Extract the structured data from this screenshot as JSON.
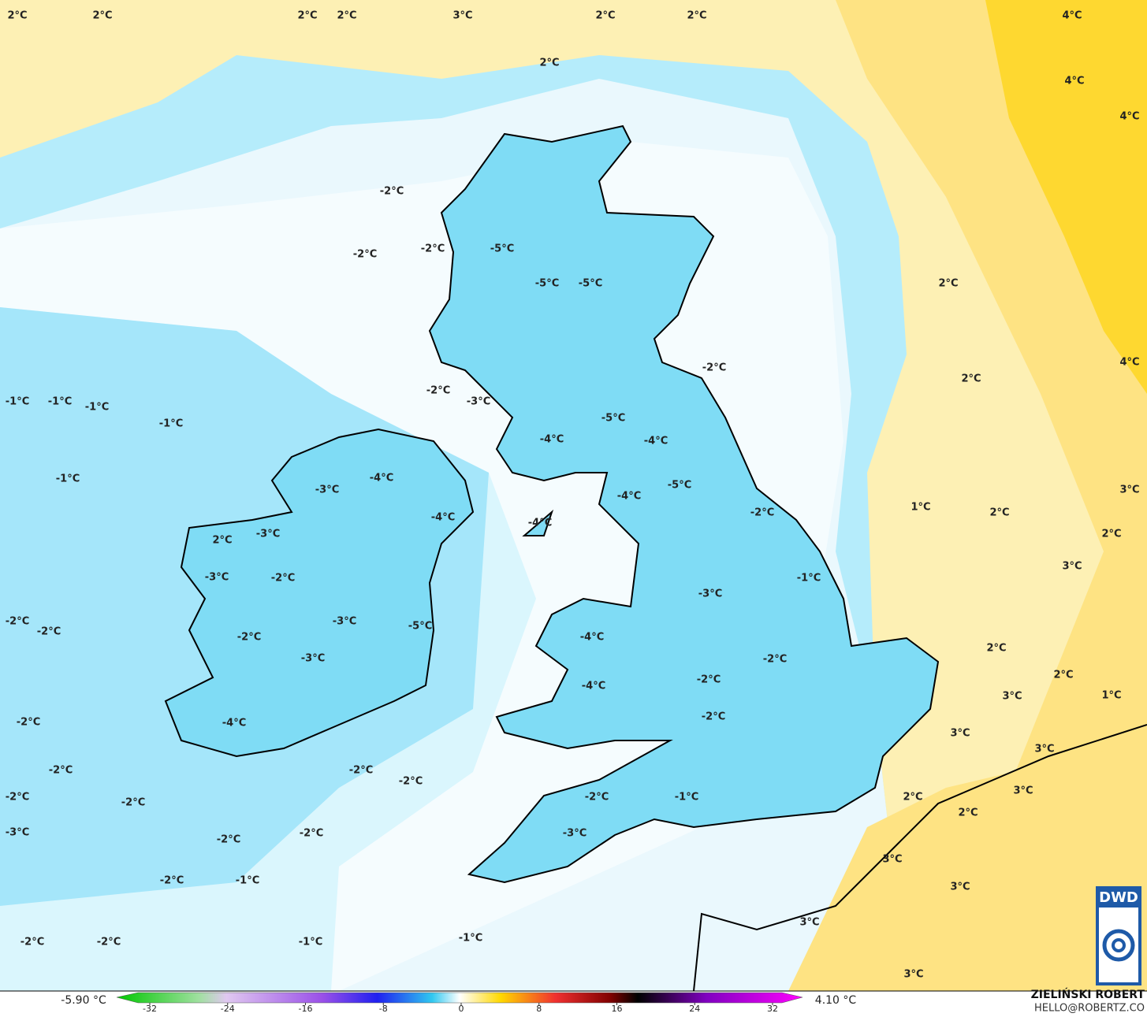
{
  "map": {
    "temperature_labels": [
      "2°C",
      "2°C",
      "2°C",
      "2°C",
      "3°C",
      "2°C",
      "2°C",
      "4°C",
      "2°C",
      "4°C",
      "4°C",
      "-2°C",
      "-2°C",
      "-2°C",
      "-5°C",
      "-5°C",
      "-5°C",
      "2°C",
      "-2°C",
      "4°C",
      "2°C",
      "-2°C",
      "-3°C",
      "-1°C",
      "-1°C",
      "-1°C",
      "-1°C",
      "-5°C",
      "-4°C",
      "-4°C",
      "-1°C",
      "-4°C",
      "-3°C",
      "-5°C",
      "-4°C",
      "3°C",
      "1°C",
      "2°C",
      "-2°C",
      "-4°C",
      "-4°C",
      "2°C",
      "-3°C",
      "2°C",
      "3°C",
      "-3°C",
      "-2°C",
      "-1°C",
      "-3°C",
      "-2°C",
      "-2°C",
      "-3°C",
      "-5°C",
      "-2°C",
      "-4°C",
      "2°C",
      "-2°C",
      "-3°C",
      "2°C",
      "-2°C",
      "-4°C",
      "1°C",
      "3°C",
      "-2°C",
      "-2°C",
      "-4°C",
      "3°C",
      "3°C",
      "-2°C",
      "-2°C",
      "-2°C",
      "3°C",
      "-2°C",
      "-2°C",
      "-1°C",
      "-2°C",
      "2°C",
      "2°C",
      "-3°C",
      "-2°C",
      "-2°C",
      "-3°C",
      "3°C",
      "-2°C",
      "-1°C",
      "3°C",
      "3°C",
      "-2°C",
      "-2°C",
      "-1°C",
      "-1°C",
      "3°C"
    ]
  },
  "colorbar": {
    "min_label": "-5.90 °C",
    "max_label": "4.10 °C",
    "range": [
      -32,
      32
    ],
    "ticks": [
      -32,
      -24,
      -16,
      -8,
      0,
      8,
      16,
      24,
      32
    ]
  },
  "credit": {
    "author": "ZIELIŃSKI ROBERT",
    "email": "HELLO@ROBERTZ.CO"
  },
  "logo": "DWD"
}
